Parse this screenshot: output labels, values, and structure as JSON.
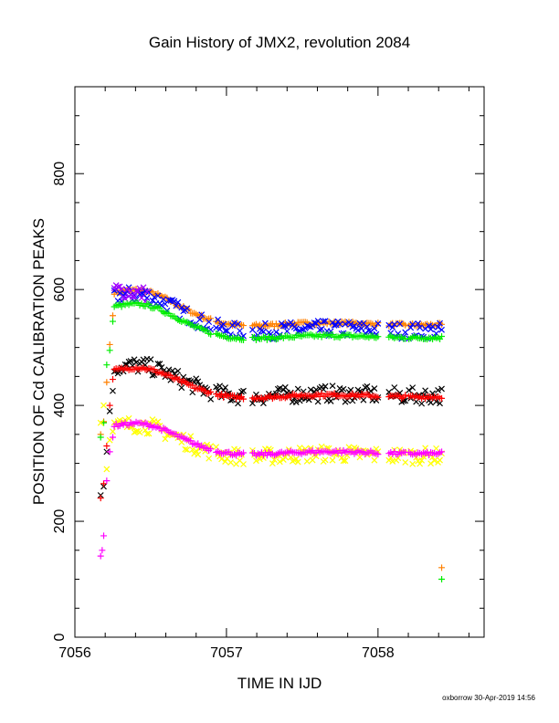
{
  "chart_data": {
    "type": "scatter",
    "title": "Gain History of JMX2, revolution 2084",
    "xlabel": "TIME IN IJD",
    "ylabel": "POSITION OF Cd CALIBRATION PEAKS",
    "xlim": [
      7056.0,
      7058.7
    ],
    "ylim": [
      0,
      950
    ],
    "xticks": [
      7056,
      7057,
      7058
    ],
    "yticks": [
      0,
      200,
      400,
      600,
      800
    ],
    "grid": false,
    "legend": "none",
    "footer": "oxborrow 30-Apr-2019 14:56",
    "series": [
      {
        "marker": "cross",
        "color": "#ff8000",
        "x_start": 7056.26,
        "x_end": 7058.42,
        "level": 540,
        "initial": 592,
        "bumps": [
          [
            7056.5,
            0
          ],
          [
            7056.87,
            -4
          ],
          [
            7057.33,
            -10
          ],
          [
            7057.8,
            -10
          ],
          [
            7058.2,
            -6
          ]
        ],
        "rise": [
          [
            7056.17,
            350
          ],
          [
            7056.19,
            372
          ],
          [
            7056.21,
            440
          ],
          [
            7056.23,
            505
          ],
          [
            7056.25,
            555
          ]
        ],
        "outliers": [
          [
            7058.42,
            120
          ]
        ]
      },
      {
        "marker": "x",
        "color": "#0000ff",
        "x_start": 7056.26,
        "x_end": 7058.42,
        "level": 530,
        "initial": 585,
        "bumps": [
          [
            7056.45,
            8
          ],
          [
            7056.87,
            -4
          ],
          [
            7057.33,
            -12
          ],
          [
            7057.8,
            -8
          ],
          [
            7058.2,
            -8
          ]
        ],
        "rise": []
      },
      {
        "marker": "x",
        "color": "#a000ff",
        "x_start": 7056.26,
        "x_end": 7056.48,
        "level": 580,
        "initial": 600,
        "bumps": [],
        "rise": []
      },
      {
        "marker": "cross",
        "color": "#00ee00",
        "x_start": 7056.26,
        "x_end": 7058.42,
        "level": 518,
        "initial": 568,
        "bumps": [
          [
            7056.5,
            0
          ],
          [
            7056.87,
            -4
          ],
          [
            7057.33,
            -10
          ],
          [
            7057.8,
            -12
          ],
          [
            7058.2,
            -6
          ]
        ],
        "rise": [
          [
            7056.17,
            345
          ],
          [
            7056.19,
            370
          ],
          [
            7056.21,
            470
          ],
          [
            7056.23,
            495
          ],
          [
            7056.25,
            545
          ]
        ],
        "outliers": [
          [
            7058.42,
            100
          ]
        ]
      },
      {
        "marker": "x",
        "color": "#000000",
        "x_start": 7056.26,
        "x_end": 7058.42,
        "level": 418,
        "initial": 462,
        "bumps": [
          [
            7056.45,
            5
          ],
          [
            7056.95,
            -4
          ],
          [
            7057.4,
            2
          ],
          [
            7057.8,
            -6
          ],
          [
            7058.25,
            -4
          ]
        ],
        "rise": [
          [
            7056.17,
            245
          ],
          [
            7056.19,
            260
          ],
          [
            7056.21,
            320
          ],
          [
            7056.23,
            390
          ],
          [
            7056.25,
            425
          ]
        ]
      },
      {
        "marker": "cross",
        "color": "#ff0000",
        "x_start": 7056.26,
        "x_end": 7058.42,
        "level": 416,
        "initial": 458,
        "bumps": [
          [
            7056.45,
            0
          ],
          [
            7056.95,
            -4
          ],
          [
            7057.4,
            2
          ],
          [
            7057.8,
            -8
          ],
          [
            7058.25,
            -4
          ]
        ],
        "rise": [
          [
            7056.17,
            240
          ],
          [
            7056.19,
            265
          ],
          [
            7056.21,
            330
          ],
          [
            7056.23,
            400
          ],
          [
            7056.25,
            445
          ]
        ]
      },
      {
        "marker": "x",
        "color": "#ffff00",
        "x_start": 7056.26,
        "x_end": 7058.42,
        "level": 314,
        "initial": 360,
        "bumps": [
          [
            7056.4,
            6
          ],
          [
            7056.95,
            -10
          ],
          [
            7057.45,
            4
          ],
          [
            7057.8,
            -8
          ],
          [
            7058.2,
            -6
          ]
        ],
        "rise": [
          [
            7056.17,
            370
          ],
          [
            7056.19,
            400
          ],
          [
            7056.21,
            290
          ],
          [
            7056.23,
            340
          ],
          [
            7056.25,
            355
          ]
        ]
      },
      {
        "marker": "cross",
        "color": "#ff00ff",
        "x_start": 7056.26,
        "x_end": 7058.42,
        "level": 318,
        "initial": 362,
        "bumps": [
          [
            7056.4,
            0
          ],
          [
            7056.95,
            -6
          ],
          [
            7057.45,
            2
          ],
          [
            7057.8,
            -10
          ],
          [
            7058.2,
            -6
          ]
        ],
        "rise": [
          [
            7056.17,
            140
          ],
          [
            7056.18,
            150
          ],
          [
            7056.19,
            175
          ],
          [
            7056.21,
            270
          ],
          [
            7056.23,
            320
          ],
          [
            7056.25,
            345
          ]
        ]
      }
    ]
  }
}
